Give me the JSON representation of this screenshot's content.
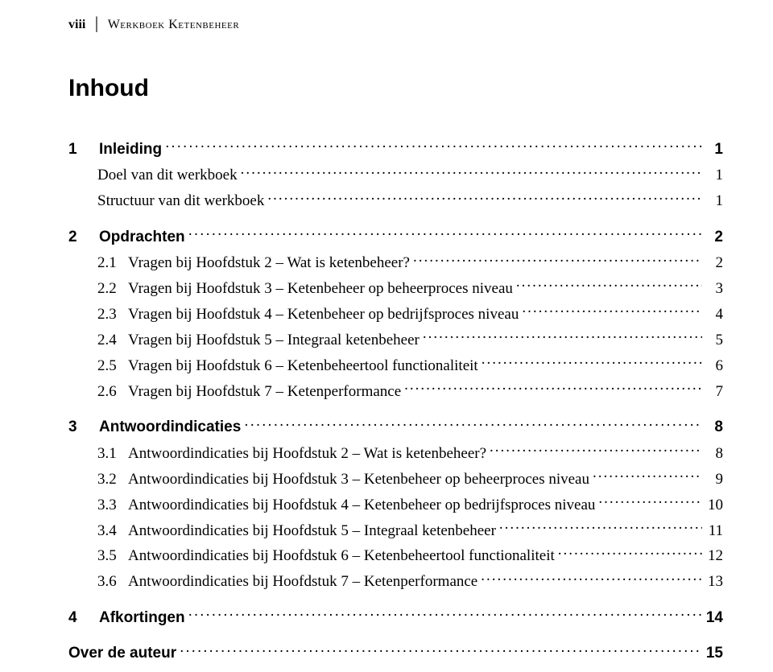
{
  "header": {
    "page_num": "viii",
    "divider": "│",
    "book_title": "Werkboek Ketenbeheer"
  },
  "title": "Inhoud",
  "toc": [
    {
      "level": 1,
      "num": "1",
      "label": "Inleiding",
      "page": "1"
    },
    {
      "level": 2,
      "num": "",
      "label": "Doel van dit werkboek",
      "page": "1"
    },
    {
      "level": 2,
      "num": "",
      "label": "Structuur van dit werkboek",
      "page": "1"
    },
    {
      "level": 1,
      "num": "2",
      "label": "Opdrachten",
      "page": "2"
    },
    {
      "level": 2,
      "num": "2.1",
      "label": "Vragen bij Hoofdstuk 2 – Wat is ketenbeheer?",
      "page": "2"
    },
    {
      "level": 2,
      "num": "2.2",
      "label": "Vragen bij Hoofdstuk 3 – Ketenbeheer op beheerproces niveau",
      "page": "3"
    },
    {
      "level": 2,
      "num": "2.3",
      "label": "Vragen bij Hoofdstuk 4 – Ketenbeheer op bedrijfsproces niveau",
      "page": "4"
    },
    {
      "level": 2,
      "num": "2.4",
      "label": "Vragen bij Hoofdstuk 5 – Integraal ketenbeheer",
      "page": "5"
    },
    {
      "level": 2,
      "num": "2.5",
      "label": "Vragen bij Hoofdstuk 6 – Ketenbeheertool functionaliteit",
      "page": "6"
    },
    {
      "level": 2,
      "num": "2.6",
      "label": "Vragen bij Hoofdstuk 7 – Ketenperformance",
      "page": "7"
    },
    {
      "level": 1,
      "num": "3",
      "label": "Antwoordindicaties",
      "page": "8"
    },
    {
      "level": 2,
      "num": "3.1",
      "label": "Antwoordindicaties bij Hoofdstuk 2 – Wat is ketenbeheer?",
      "page": "8"
    },
    {
      "level": 2,
      "num": "3.2",
      "label": "Antwoordindicaties bij Hoofdstuk 3 – Ketenbeheer op beheerproces niveau",
      "page": "9"
    },
    {
      "level": 2,
      "num": "3.3",
      "label": "Antwoordindicaties bij Hoofdstuk 4 – Ketenbeheer op bedrijfsproces niveau",
      "page": "10"
    },
    {
      "level": 2,
      "num": "3.4",
      "label": "Antwoordindicaties bij Hoofdstuk 5 – Integraal ketenbeheer",
      "page": "11"
    },
    {
      "level": 2,
      "num": "3.5",
      "label": "Antwoordindicaties bij Hoofdstuk 6 – Ketenbeheertool functionaliteit",
      "page": "12"
    },
    {
      "level": 2,
      "num": "3.6",
      "label": "Antwoordindicaties bij Hoofdstuk 7 – Ketenperformance",
      "page": "13"
    },
    {
      "level": 1,
      "num": "4",
      "label": "Afkortingen",
      "page": "14"
    },
    {
      "level": 1,
      "num": "",
      "label": "Over de auteur",
      "page": "15"
    }
  ]
}
